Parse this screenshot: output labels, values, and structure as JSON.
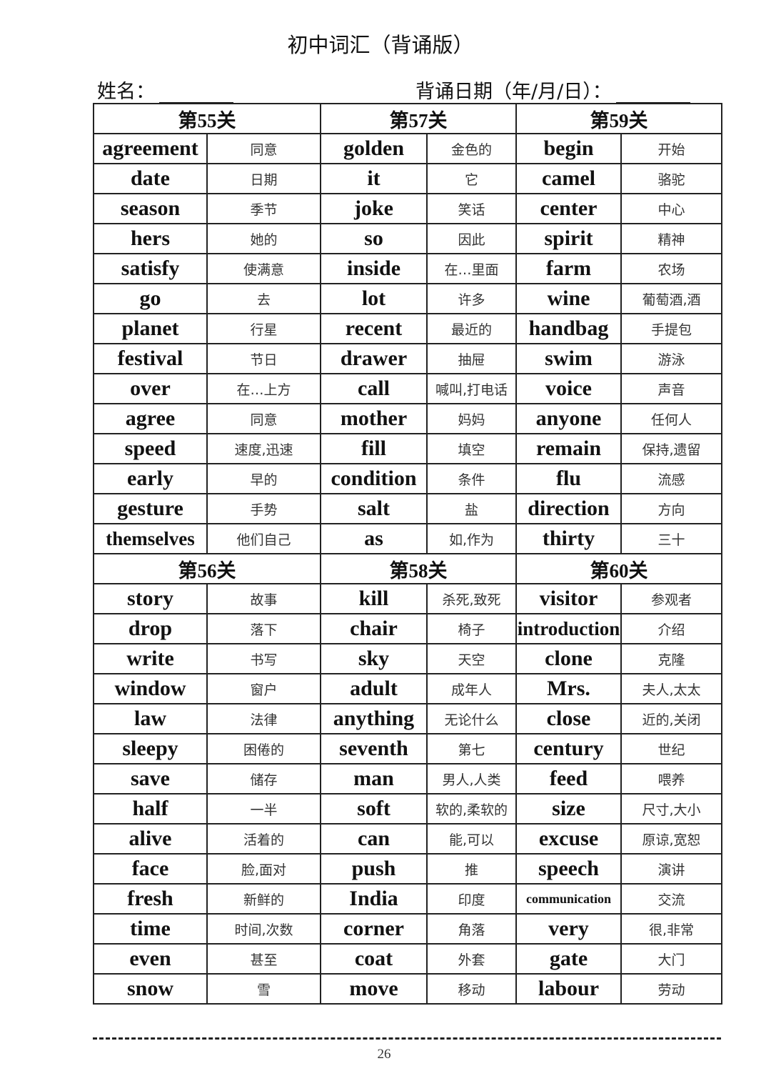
{
  "title": "初中词汇（背诵版）",
  "name_label": "姓名：",
  "date_label": "背诵日期（年/月/日）：",
  "page_number": "26",
  "sections": [
    {
      "headers": [
        "第55关",
        "第57关",
        "第59关"
      ],
      "rows": [
        [
          "agreement",
          "同意",
          "golden",
          "金色的",
          "begin",
          "开始"
        ],
        [
          "date",
          "日期",
          "it",
          "它",
          "camel",
          "骆驼"
        ],
        [
          "season",
          "季节",
          "joke",
          "笑话",
          "center",
          "中心"
        ],
        [
          "hers",
          "她的",
          "so",
          "因此",
          "spirit",
          "精神"
        ],
        [
          "satisfy",
          "使满意",
          "inside",
          "在…里面",
          "farm",
          "农场"
        ],
        [
          "go",
          "去",
          "lot",
          "许多",
          "wine",
          "葡萄酒,酒"
        ],
        [
          "planet",
          "行星",
          "recent",
          "最近的",
          "handbag",
          "手提包"
        ],
        [
          "festival",
          "节日",
          "drawer",
          "抽屉",
          "swim",
          "游泳"
        ],
        [
          "over",
          "在…上方",
          "call",
          "喊叫,打电话",
          "voice",
          "声音"
        ],
        [
          "agree",
          "同意",
          "mother",
          "妈妈",
          "anyone",
          "任何人"
        ],
        [
          "speed",
          "速度,迅速",
          "fill",
          "填空",
          "remain",
          "保持,遗留"
        ],
        [
          "early",
          "早的",
          "condition",
          "条件",
          "flu",
          "流感"
        ],
        [
          "gesture",
          "手势",
          "salt",
          "盐",
          "direction",
          "方向"
        ],
        [
          "themselves",
          "他们自己",
          "as",
          "如,作为",
          "thirty",
          "三十"
        ]
      ]
    },
    {
      "headers": [
        "第56关",
        "第58关",
        "第60关"
      ],
      "rows": [
        [
          "story",
          "故事",
          "kill",
          "杀死,致死",
          "visitor",
          "参观者"
        ],
        [
          "drop",
          "落下",
          "chair",
          "椅子",
          "introduction",
          "介绍"
        ],
        [
          "write",
          "书写",
          "sky",
          "天空",
          "clone",
          "克隆"
        ],
        [
          "window",
          "窗户",
          "adult",
          "成年人",
          "Mrs.",
          "夫人,太太"
        ],
        [
          "law",
          "法律",
          "anything",
          "无论什么",
          "close",
          "近的,关闭"
        ],
        [
          "sleepy",
          "困倦的",
          "seventh",
          "第七",
          "century",
          "世纪"
        ],
        [
          "save",
          "储存",
          "man",
          "男人,人类",
          "feed",
          "喂养"
        ],
        [
          "half",
          "一半",
          "soft",
          "软的,柔软的",
          "size",
          "尺寸,大小"
        ],
        [
          "alive",
          "活着的",
          "can",
          "能,可以",
          "excuse",
          "原谅,宽恕"
        ],
        [
          "face",
          "脸,面对",
          "push",
          "推",
          "speech",
          "演讲"
        ],
        [
          "fresh",
          "新鲜的",
          "India",
          "印度",
          "communication",
          "交流"
        ],
        [
          "time",
          "时间,次数",
          "corner",
          "角落",
          "very",
          "很,非常"
        ],
        [
          "even",
          "甚至",
          "coat",
          "外套",
          "gate",
          "大门"
        ],
        [
          "snow",
          "雪",
          "move",
          "移动",
          "labour",
          "劳动"
        ]
      ]
    }
  ]
}
